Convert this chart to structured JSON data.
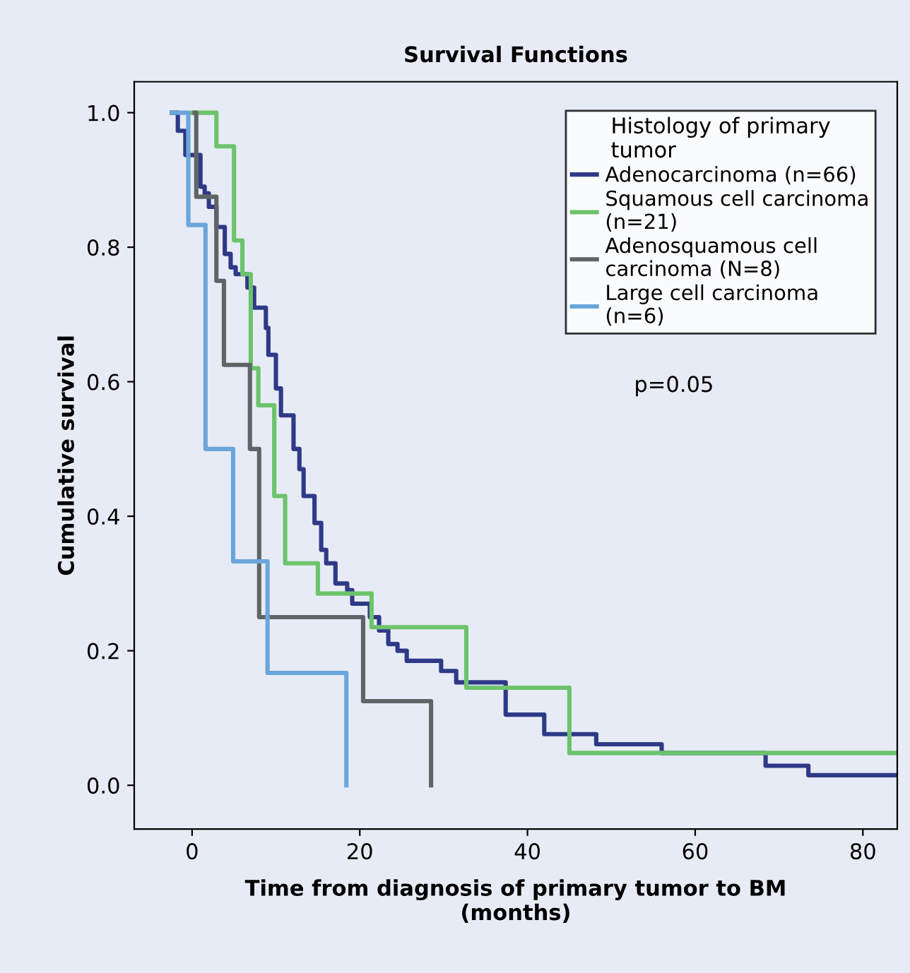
{
  "chart_data": {
    "type": "step",
    "title": "Survival Functions",
    "xlabel": "Time from diagnosis of primary tumor to BM\n(months)",
    "ylabel": "Cumulative survival",
    "legend_title": "Histology of primary\ntumor",
    "series": [
      {
        "name": "Adenocarcinoma (n=66)",
        "color": "#2e3a87",
        "x": [
          -2.4,
          -1.7,
          -0.8,
          1.0,
          1.5,
          2.0,
          2.9,
          3.9,
          4.6,
          5.2,
          6.6,
          7.4,
          8.8,
          9.1,
          10.0,
          10.6,
          12.1,
          12.8,
          13.3,
          14.6,
          15.4,
          16.0,
          17.1,
          18.5,
          19.1,
          21.2,
          22.3,
          23.4,
          24.5,
          25.6,
          29.7,
          31.5,
          37.4,
          42.0,
          48.2,
          56.0,
          68.4,
          73.5,
          84.0
        ],
        "values": [
          1.0,
          0.973,
          0.937,
          0.89,
          0.88,
          0.86,
          0.83,
          0.79,
          0.77,
          0.76,
          0.74,
          0.71,
          0.68,
          0.64,
          0.59,
          0.55,
          0.5,
          0.47,
          0.43,
          0.39,
          0.35,
          0.33,
          0.3,
          0.29,
          0.27,
          0.25,
          0.23,
          0.21,
          0.2,
          0.185,
          0.17,
          0.153,
          0.105,
          0.076,
          0.061,
          0.048,
          0.029,
          0.015,
          0.015
        ]
      },
      {
        "name": "Squamous cell carcinoma\n(n=21)",
        "color": "#6cc36b",
        "x": [
          0.0,
          2.9,
          5.0,
          6.0,
          7.0,
          7.9,
          9.8,
          11.1,
          15.0,
          21.4,
          32.7,
          45.0,
          84.0
        ],
        "values": [
          1.0,
          0.95,
          0.81,
          0.76,
          0.62,
          0.565,
          0.43,
          0.33,
          0.285,
          0.235,
          0.145,
          0.048,
          0.048
        ]
      },
      {
        "name": "Adenosquamous cell\ncarcinoma (N=8)",
        "color": "#5f6566",
        "x": [
          0.3,
          0.5,
          2.9,
          3.8,
          6.9,
          8.0,
          20.4,
          28.5
        ],
        "values": [
          1.0,
          0.875,
          0.75,
          0.625,
          0.5,
          0.25,
          0.125,
          0.0
        ]
      },
      {
        "name": "Large cell carcinoma\n(n=6)",
        "color": "#6aa6db",
        "x": [
          -2.4,
          -0.45,
          1.6,
          4.9,
          9.0,
          18.4
        ],
        "values": [
          1.0,
          0.833,
          0.5,
          0.333,
          0.167,
          0.0
        ]
      }
    ],
    "xlim": [
      -6.9,
      84.1
    ],
    "ylim": [
      -0.065,
      1.046
    ],
    "xticks": [
      0,
      20,
      40,
      60,
      80
    ],
    "yticks": [
      {
        "value": 0,
        "label": "0.0"
      },
      0.2,
      0.4,
      0.6,
      0.8,
      {
        "value": 1,
        "label": "1.0"
      }
    ],
    "annotations": [
      "p=0.05"
    ],
    "grid": false,
    "legend": "top right",
    "marker": "none",
    "line_style": "solid"
  }
}
